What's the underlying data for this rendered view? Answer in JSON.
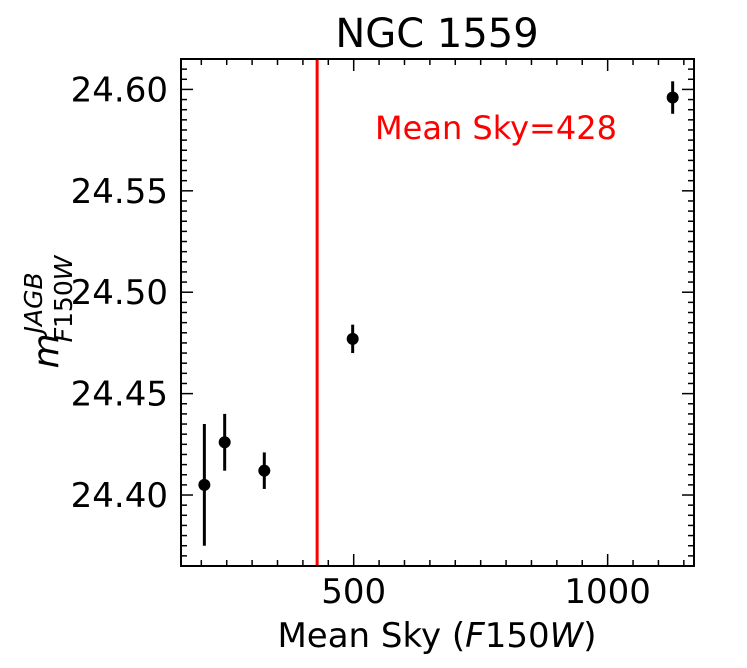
{
  "chart_data": {
    "type": "scatter",
    "title": "NGC 1559",
    "xlabel_parts": [
      "Mean Sky (",
      "F",
      "150",
      "W",
      ")"
    ],
    "ylabel_parts": {
      "base": "m",
      "sup": "JAGB",
      "sub_italic_1": "F",
      "sub_plain": "150",
      "sub_italic_2": "W"
    },
    "xlim": [
      160,
      1170
    ],
    "ylim": [
      24.365,
      24.615
    ],
    "x_ticks": [
      500,
      1000
    ],
    "x_tick_labels": [
      "500",
      "1000"
    ],
    "y_ticks": [
      24.4,
      24.45,
      24.5,
      24.55,
      24.6
    ],
    "y_tick_labels": [
      "24.40",
      "24.45",
      "24.50",
      "24.55",
      "24.60"
    ],
    "points": [
      {
        "x": 206,
        "y": 24.405,
        "err": 0.03
      },
      {
        "x": 246,
        "y": 24.426,
        "err": 0.014
      },
      {
        "x": 324,
        "y": 24.412,
        "err": 0.009
      },
      {
        "x": 498,
        "y": 24.477,
        "err": 0.007
      },
      {
        "x": 1128,
        "y": 24.596,
        "err": 0.008
      }
    ],
    "vline": {
      "x": 428,
      "color": "#ff0000",
      "label": "Mean Sky=428"
    },
    "marker_color": "#000000",
    "grid": false,
    "legend": false
  }
}
